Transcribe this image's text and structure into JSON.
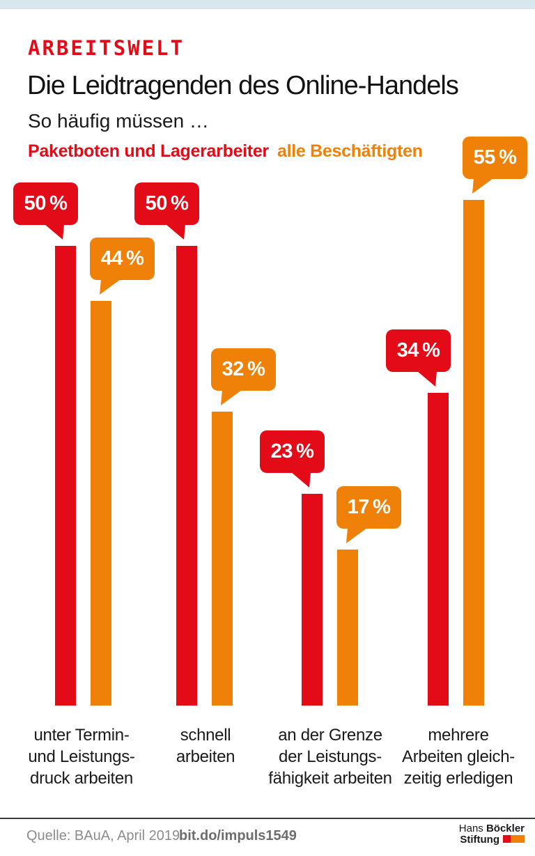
{
  "header": {
    "kicker": "ARBEITSWELT",
    "title": "Die Leidtragenden des Online-Handels",
    "subtitle": "So häufig müssen …"
  },
  "legend": {
    "series1": "Paketboten und Lagerarbeiter",
    "series2": "alle Beschäftigten"
  },
  "chart_data": {
    "type": "bar",
    "title": "Die Leidtragenden des Online-Handels",
    "subtitle": "So häufig müssen …",
    "unit": "%",
    "ylim": [
      0,
      60
    ],
    "grid": false,
    "legend_position": "top",
    "categories": [
      "unter Termin- und Leistungsdruck arbeiten",
      "schnell arbeiten",
      "an der Grenze der Leistungsfähigkeit arbeiten",
      "mehrere Arbeiten gleichzeitig erledigen"
    ],
    "categories_lines": [
      [
        "unter Termin-",
        "und Leistungs-",
        "druck arbeiten"
      ],
      [
        "schnell",
        "arbeiten"
      ],
      [
        "an der Grenze",
        "der Leistungs-",
        "fähigkeit arbeiten"
      ],
      [
        "mehrere",
        "Arbeiten gleich-",
        "zeitig erledigen"
      ]
    ],
    "series": [
      {
        "name": "Paketboten und Lagerarbeiter",
        "color": "#e30b17",
        "values": [
          50,
          50,
          23,
          34
        ]
      },
      {
        "name": "alle Beschäftigten",
        "color": "#ef8109",
        "values": [
          44,
          32,
          17,
          55
        ]
      }
    ],
    "value_labels": [
      [
        "50 %",
        "50 %",
        "23 %",
        "34 %"
      ],
      [
        "44 %",
        "32 %",
        "17 %",
        "55 %"
      ]
    ]
  },
  "footer": {
    "source": "Quelle: BAuA, April 2019",
    "link": "bit.do/impuls1549",
    "logo": {
      "line1_regular": "Hans",
      "line1_bold": "Böckler",
      "line2_bold": "Stiftung"
    }
  },
  "colors": {
    "red": "#e30b17",
    "orange": "#ef8109",
    "topbar": "#d8e7ee",
    "rule": "#3c3c3c"
  }
}
